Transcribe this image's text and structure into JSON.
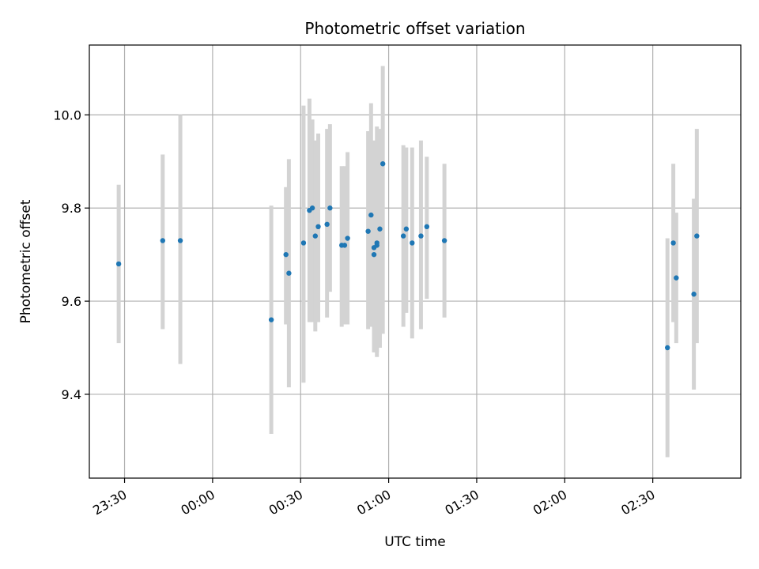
{
  "chart_data": {
    "type": "scatter",
    "title": "Photometric offset variation",
    "xlabel": "UTC time",
    "ylabel": "Photometric offset",
    "grid": true,
    "xlim": [
      "23:18",
      "03:00"
    ],
    "ylim": [
      9.22,
      10.15
    ],
    "x_tick_labels": [
      "23:30",
      "00:00",
      "00:30",
      "01:00",
      "01:30",
      "02:00",
      "02:30"
    ],
    "x_tick_times": [
      "23:30",
      "00:00",
      "00:30",
      "01:00",
      "01:30",
      "02:00",
      "02:30"
    ],
    "y_ticks": [
      9.4,
      9.6,
      9.8,
      10.0
    ],
    "y_tick_labels": [
      "9.4",
      "9.6",
      "9.8",
      "10.0"
    ],
    "colors": {
      "point": "#1f77b4",
      "errorbar": "#d3d3d3",
      "grid": "#b0b0b0"
    },
    "points": [
      {
        "t": "23:28",
        "y": 9.68,
        "lo": 9.51,
        "hi": 9.85
      },
      {
        "t": "23:43",
        "y": 9.73,
        "lo": 9.54,
        "hi": 9.915
      },
      {
        "t": "23:49",
        "y": 9.73,
        "lo": 9.465,
        "hi": 10.0
      },
      {
        "t": "00:20",
        "y": 9.56,
        "lo": 9.315,
        "hi": 9.805
      },
      {
        "t": "00:25",
        "y": 9.7,
        "lo": 9.55,
        "hi": 9.845
      },
      {
        "t": "00:26",
        "y": 9.66,
        "lo": 9.415,
        "hi": 9.905
      },
      {
        "t": "00:31",
        "y": 9.725,
        "lo": 9.425,
        "hi": 10.02
      },
      {
        "t": "00:33",
        "y": 9.795,
        "lo": 9.555,
        "hi": 10.035
      },
      {
        "t": "00:34",
        "y": 9.8,
        "lo": 9.555,
        "hi": 9.99
      },
      {
        "t": "00:35",
        "y": 9.74,
        "lo": 9.535,
        "hi": 9.945
      },
      {
        "t": "00:36",
        "y": 9.76,
        "lo": 9.555,
        "hi": 9.96
      },
      {
        "t": "00:39",
        "y": 9.765,
        "lo": 9.565,
        "hi": 9.97
      },
      {
        "t": "00:40",
        "y": 9.8,
        "lo": 9.62,
        "hi": 9.98
      },
      {
        "t": "00:44",
        "y": 9.72,
        "lo": 9.545,
        "hi": 9.89
      },
      {
        "t": "00:45",
        "y": 9.72,
        "lo": 9.55,
        "hi": 9.89
      },
      {
        "t": "00:46",
        "y": 9.735,
        "lo": 9.55,
        "hi": 9.92
      },
      {
        "t": "00:53",
        "y": 9.75,
        "lo": 9.54,
        "hi": 9.965
      },
      {
        "t": "00:54",
        "y": 9.785,
        "lo": 9.545,
        "hi": 10.025
      },
      {
        "t": "00:55",
        "y": 9.7,
        "lo": 9.5,
        "hi": 9.94
      },
      {
        "t": "00:55",
        "y": 9.715,
        "lo": 9.49,
        "hi": 9.945
      },
      {
        "t": "00:56",
        "y": 9.725,
        "lo": 9.48,
        "hi": 9.975
      },
      {
        "t": "00:56",
        "y": 9.72,
        "lo": 9.49,
        "hi": 9.94
      },
      {
        "t": "00:57",
        "y": 9.755,
        "lo": 9.5,
        "hi": 9.97
      },
      {
        "t": "00:58",
        "y": 9.895,
        "lo": 9.53,
        "hi": 10.105
      },
      {
        "t": "01:05",
        "y": 9.74,
        "lo": 9.545,
        "hi": 9.935
      },
      {
        "t": "01:06",
        "y": 9.755,
        "lo": 9.575,
        "hi": 9.93
      },
      {
        "t": "01:08",
        "y": 9.725,
        "lo": 9.52,
        "hi": 9.93
      },
      {
        "t": "01:11",
        "y": 9.74,
        "lo": 9.54,
        "hi": 9.945
      },
      {
        "t": "01:13",
        "y": 9.76,
        "lo": 9.605,
        "hi": 9.91
      },
      {
        "t": "01:19",
        "y": 9.73,
        "lo": 9.565,
        "hi": 9.895
      },
      {
        "t": "02:35",
        "y": 9.5,
        "lo": 9.265,
        "hi": 9.735
      },
      {
        "t": "02:37",
        "y": 9.725,
        "lo": 9.555,
        "hi": 9.895
      },
      {
        "t": "02:38",
        "y": 9.65,
        "lo": 9.51,
        "hi": 9.79
      },
      {
        "t": "02:44",
        "y": 9.615,
        "lo": 9.41,
        "hi": 9.82
      },
      {
        "t": "02:45",
        "y": 9.74,
        "lo": 9.51,
        "hi": 9.97
      }
    ]
  }
}
